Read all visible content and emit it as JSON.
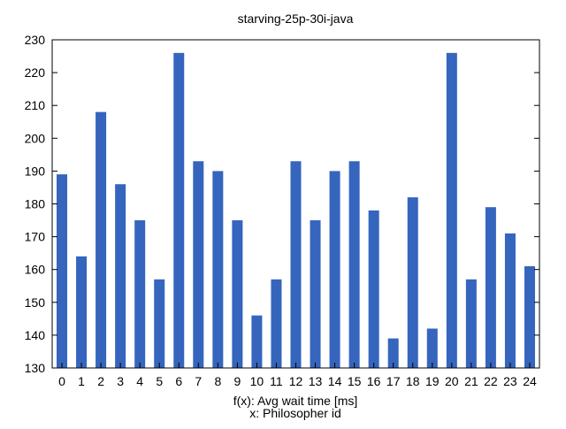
{
  "chart_data": {
    "type": "bar",
    "title": "starving-25p-30i-java",
    "xlabel": "x: Philosopher id",
    "ylabel": "f(x): Avg wait time [ms]",
    "categories": [
      "0",
      "1",
      "2",
      "3",
      "4",
      "5",
      "6",
      "7",
      "8",
      "9",
      "10",
      "11",
      "12",
      "13",
      "14",
      "15",
      "16",
      "17",
      "18",
      "19",
      "20",
      "21",
      "22",
      "23",
      "24"
    ],
    "series": [
      {
        "values": [
          189,
          164,
          208,
          186,
          175,
          157,
          226,
          193,
          190,
          175,
          146,
          157,
          193,
          175,
          190,
          193,
          178,
          139,
          182,
          142,
          226,
          157,
          179,
          171,
          161
        ]
      }
    ],
    "ylim": [
      130,
      230
    ],
    "yticks": [
      130,
      140,
      150,
      160,
      170,
      180,
      190,
      200,
      210,
      220,
      230
    ],
    "grid": false,
    "legend": "none",
    "bar_color": "#3565bd",
    "axis_color": "#000000"
  }
}
